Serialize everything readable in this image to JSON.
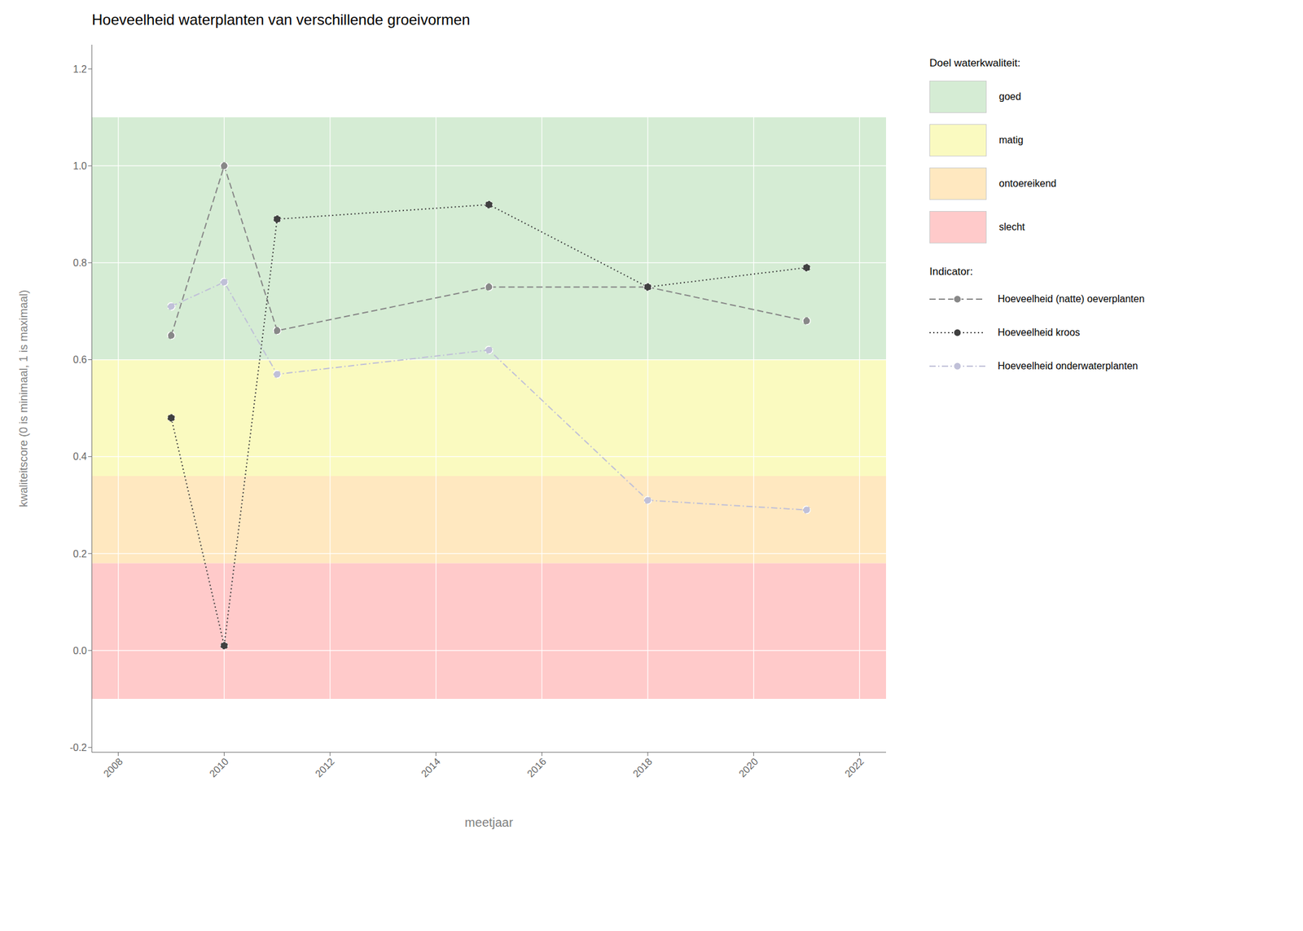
{
  "chart_data": {
    "type": "line",
    "title": "Hoeveelheid waterplanten van verschillende groeivormen",
    "x_label": "meetjaar",
    "y_label": "kwaliteitscore (0 is minimaal, 1 is maximaal)",
    "x": [
      2009,
      2010,
      2011,
      2015,
      2018,
      2021
    ],
    "series": [
      {
        "name": "Hoeveelheid (natte) oeverplanten",
        "color": "#888888",
        "line_style": "dashed",
        "marker": "circle",
        "values": [
          0.65,
          1.0,
          0.66,
          0.75,
          0.75,
          0.68
        ]
      },
      {
        "name": "Hoeveelheid kroos",
        "color": "#404040",
        "line_style": "dotted",
        "marker": "circle",
        "values": [
          0.48,
          0.01,
          0.89,
          0.92,
          0.75,
          0.79
        ]
      },
      {
        "name": "Hoeveelheid onderwaterplanten",
        "color": "#c0c0d8",
        "line_style": "dashdot",
        "marker": "circle",
        "values": [
          0.71,
          0.76,
          0.57,
          0.62,
          0.31,
          0.29
        ]
      }
    ],
    "xlim": [
      2007.5,
      2022.5
    ],
    "xticks": [
      2008,
      2010,
      2012,
      2014,
      2016,
      2018,
      2020,
      2022
    ],
    "ylim": [
      -0.21,
      1.25
    ],
    "yticks": [
      -0.2,
      {
        "value": 0.0,
        "label": "0.0"
      },
      0.2,
      0.4,
      0.6,
      0.8,
      {
        "value": 1.0,
        "label": "1.0"
      },
      1.2
    ],
    "zones_title": "Doel waterkwaliteit:",
    "zones": [
      {
        "name": "goed",
        "color": "#d5ecd4",
        "ymin": 0.6,
        "ymax": 1.1
      },
      {
        "name": "matig",
        "color": "#fafac0",
        "ymin": 0.36,
        "ymax": 0.6
      },
      {
        "name": "ontoereikend",
        "color": "#ffe8c0",
        "ymin": 0.18,
        "ymax": 0.36
      },
      {
        "name": "slecht",
        "color": "#ffcaca",
        "ymin": -0.1,
        "ymax": 0.18
      }
    ],
    "series_title": "Indicator:",
    "grid": true,
    "legend": "right"
  }
}
